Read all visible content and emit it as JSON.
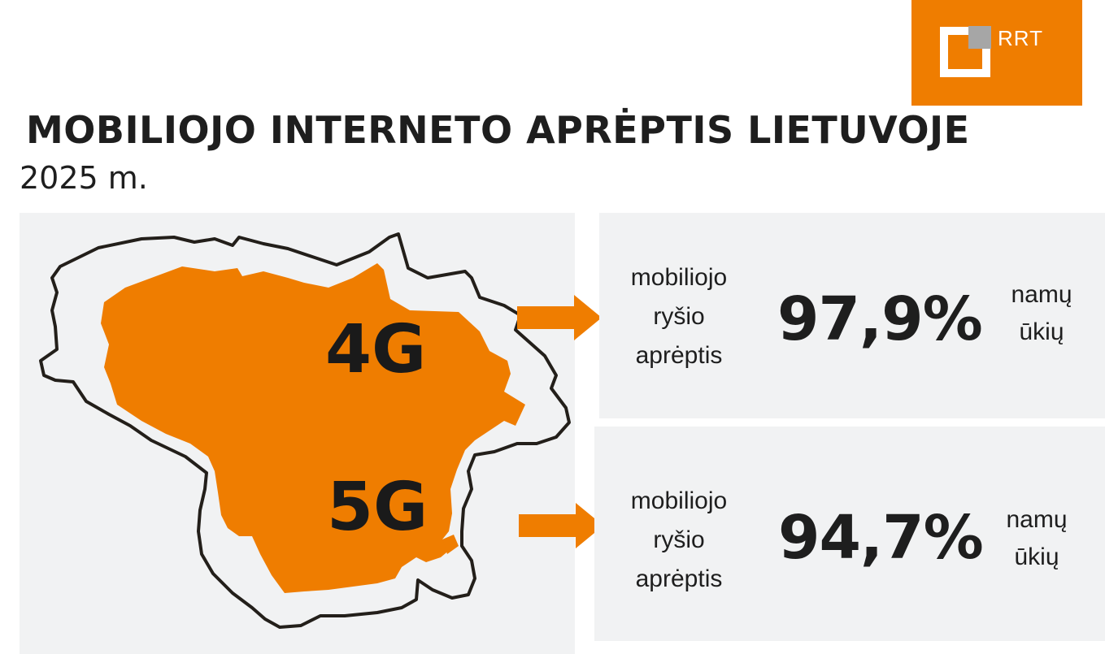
{
  "logo": {
    "text": "RRT",
    "icon": "rrt-logo-icon",
    "background": "#ef7d00"
  },
  "header": {
    "title": "MOBILIOJO INTERNETO APRĖPTIS LIETUVOJE",
    "year": "2025 m."
  },
  "map": {
    "label_4g": "4G",
    "label_5g": "5G",
    "fill_color": "#ef7d00",
    "outline_color": "#231f1a",
    "icon": "lithuania-map-icon"
  },
  "stats": [
    {
      "network": "4G",
      "description_lines": [
        "mobiliojo",
        "ryšio",
        "aprėptis"
      ],
      "value": "97,9%",
      "unit_lines": [
        "namų",
        "ūkių"
      ]
    },
    {
      "network": "5G",
      "description_lines": [
        "mobiliojo",
        "ryšio",
        "aprėptis"
      ],
      "value": "94,7%",
      "unit_lines": [
        "namų",
        "ūkių"
      ]
    }
  ],
  "colors": {
    "accent": "#ef7d00",
    "panel": "#f1f2f3",
    "text": "#1e1e1e"
  }
}
